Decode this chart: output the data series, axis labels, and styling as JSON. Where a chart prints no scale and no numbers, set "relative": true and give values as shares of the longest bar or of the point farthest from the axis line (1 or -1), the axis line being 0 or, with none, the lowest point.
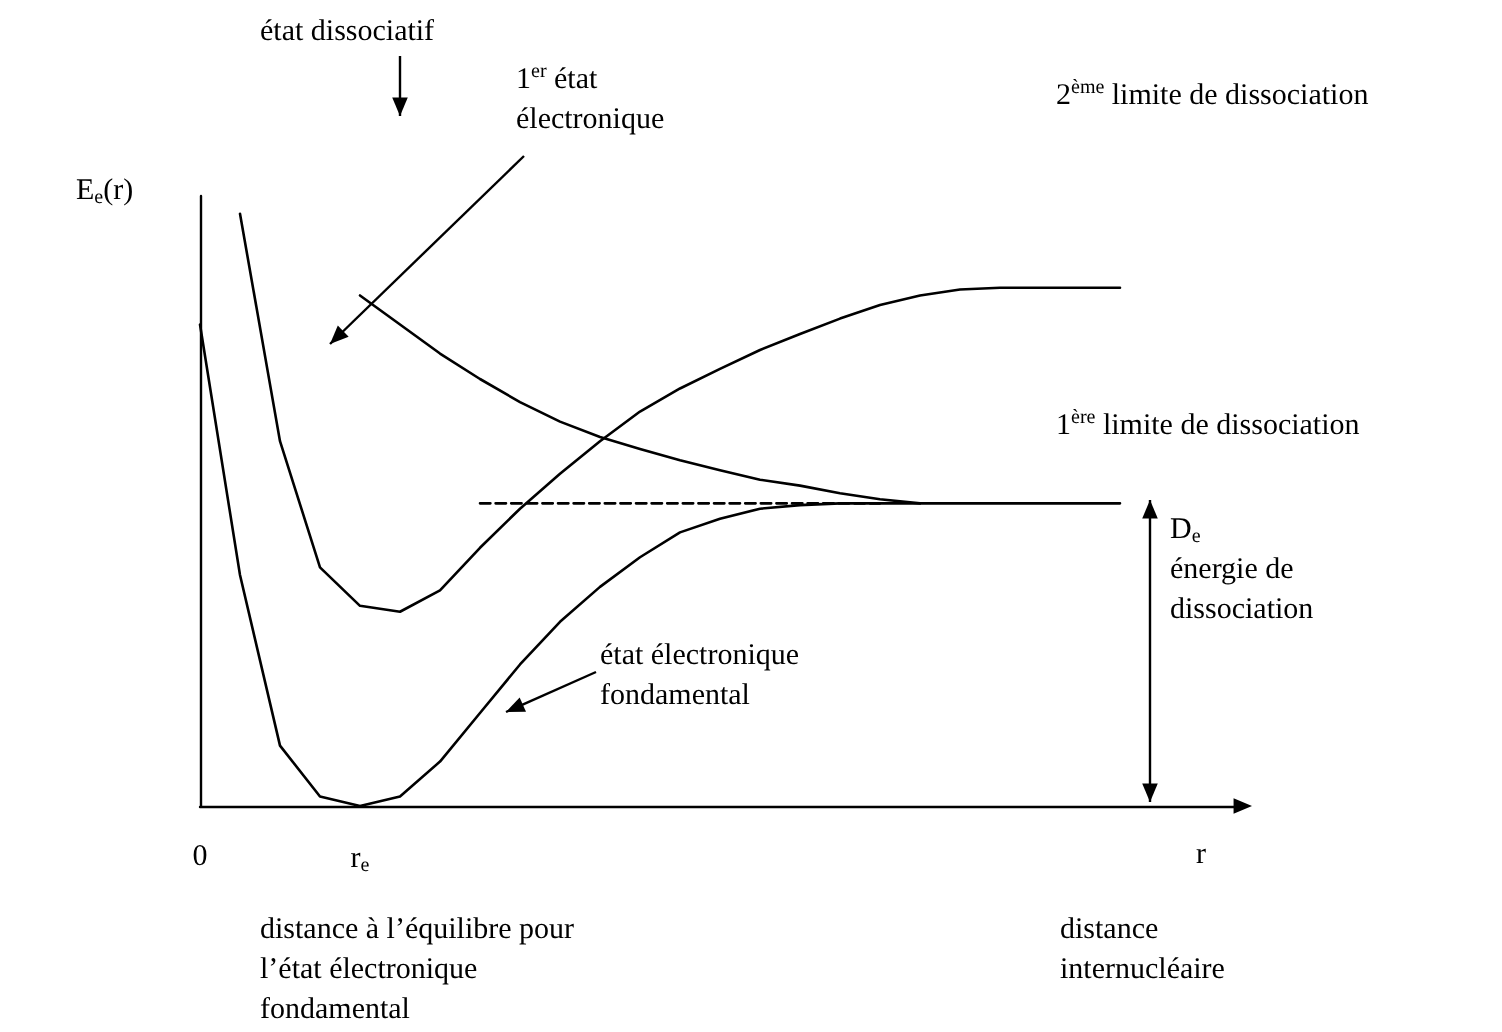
{
  "chart_data": {
    "type": "line",
    "relative": true,
    "ylabel": "E$_{e}$(r)",
    "xlabel": "r",
    "categories": [
      "0",
      null,
      null,
      null,
      "r$_{e}$",
      null,
      null,
      null,
      null,
      null,
      null,
      null,
      null,
      null,
      null,
      null,
      null,
      null,
      null,
      null,
      null,
      null,
      null,
      null,
      null,
      null,
      null
    ],
    "series": [
      {
        "color": "#000000",
        "values": [
          0.813,
          0.39,
          0.102,
          0.016,
          0,
          0.016,
          0.075,
          0.157,
          0.239,
          0.311,
          0.37,
          0.42,
          0.462,
          0.485,
          0.502,
          0.508,
          0.511,
          0.511,
          0.511,
          0.511,
          0.511,
          0.511,
          0.511,
          0.511,
          null,
          null,
          null
        ]
      },
      {
        "color": "#000000",
        "values": [
          null,
          1,
          0.616,
          0.403,
          0.338,
          0.328,
          0.364,
          0.436,
          0.502,
          0.561,
          0.616,
          0.666,
          0.705,
          0.738,
          0.77,
          0.797,
          0.823,
          0.846,
          0.862,
          0.872,
          0.875,
          0.875,
          0.875,
          0.875,
          null,
          null,
          null
        ]
      },
      {
        "color": "#000000",
        "values": [
          null,
          null,
          null,
          null,
          0.862,
          0.813,
          0.764,
          0.721,
          0.682,
          0.649,
          0.623,
          0.603,
          0.584,
          0.567,
          0.551,
          0.541,
          0.528,
          0.518,
          0.511,
          null,
          null,
          null,
          null,
          null,
          null,
          null,
          null
        ]
      },
      {
        "color": "#000000",
        "line_style": "dashed",
        "values": [
          null,
          null,
          null,
          null,
          null,
          null,
          null,
          0.511,
          0.511,
          0.511,
          0.511,
          0.511,
          0.511,
          0.511,
          0.511,
          0.511,
          0.511,
          0.511,
          null,
          null,
          null,
          null,
          null,
          null,
          null,
          null,
          null
        ]
      }
    ],
    "annotations": [
      "état dissociatif",
      "1$^{er}$ état\nélectronique",
      "2$^{ème}$ limite de dissociation",
      "1$^{ère}$ limite de dissociation",
      "D$_{e}$\nénergie de\ndissociation",
      "état électronique\nfondamental",
      "distance à l’équilibre pour\nl’état électronique\nfondamental",
      "distance\ninternucléaire"
    ],
    "grid": false,
    "marker": "none",
    "line_style": "solid"
  }
}
